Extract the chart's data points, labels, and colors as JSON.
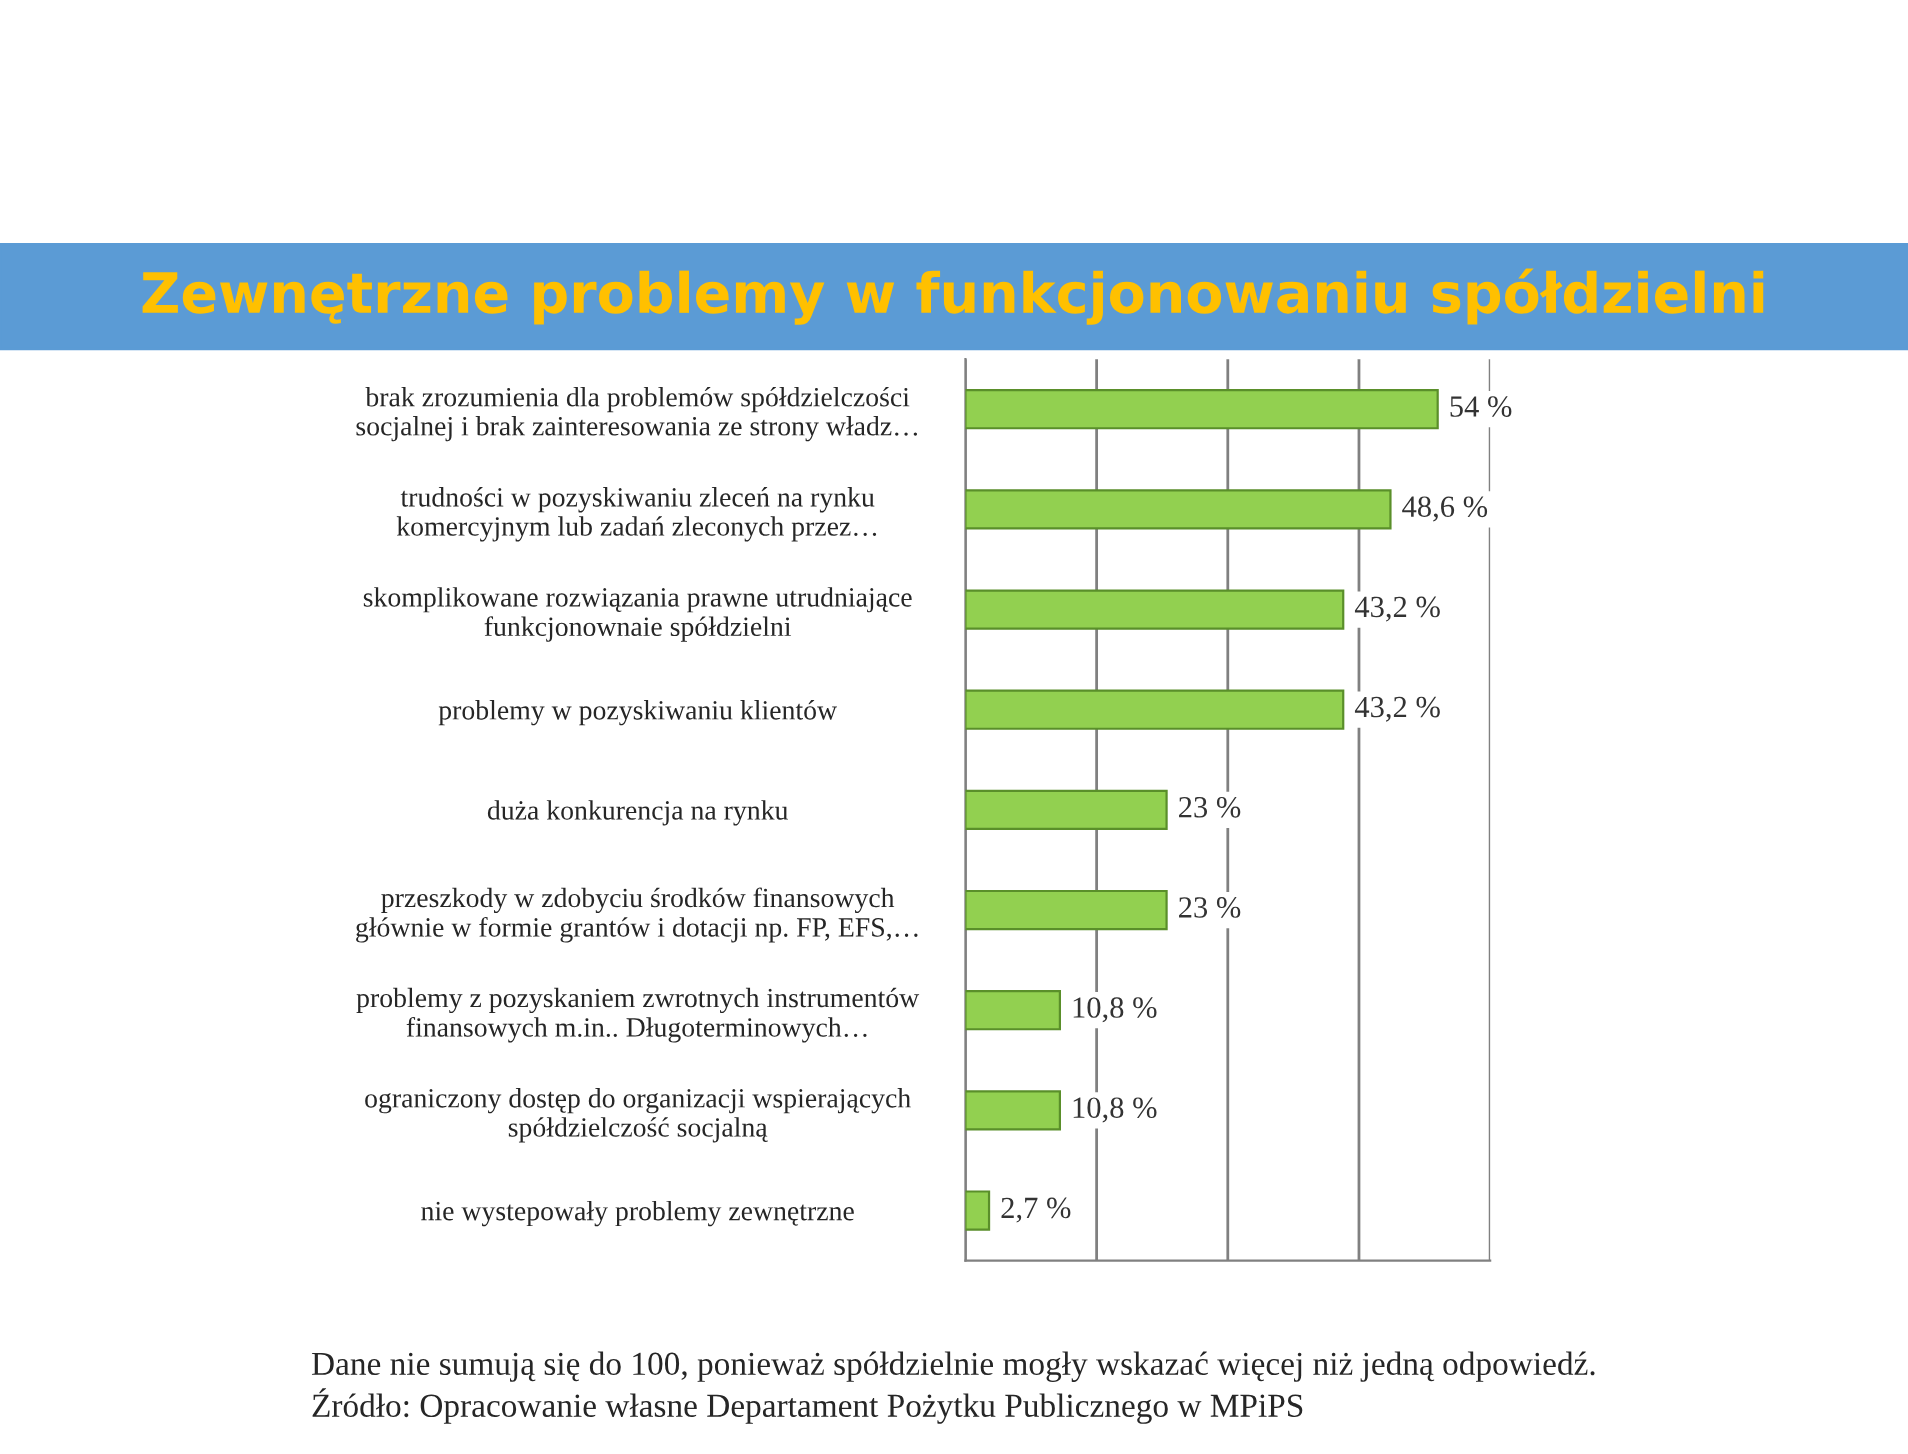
{
  "chart_data": {
    "type": "bar",
    "orientation": "horizontal",
    "title": "Zewnętrzne problemy w funkcjonowaniu spółdzielni",
    "categories": [
      "brak zrozumienia dla problemów spółdzielczości\nsocjalnej i brak zainteresowania ze strony władz…",
      "trudności w pozyskiwaniu zleceń na rynku\nkomercyjnym lub zadań zleconych przez…",
      "skomplikowane rozwiązania prawne utrudniające\nfunkcjonownaie spółdzielni",
      "problemy w pozyskiwaniu klientów",
      "duża konkurencja na rynku",
      "przeszkody w zdobyciu środków finansowych\ngłównie w formie grantów i dotacji np. FP, EFS,…",
      "problemy z pozyskaniem zwrotnych instrumentów\nfinansowych m.in.. Długoterminowych…",
      "ograniczony dostęp do organizacji wspierających\nspółdzielczość socjalną",
      "nie wystepowały problemy zewnętrzne"
    ],
    "values": [
      54,
      48.6,
      43.2,
      43.2,
      23,
      23,
      10.8,
      10.8,
      2.7
    ],
    "value_labels": [
      "54 %",
      "48,6 %",
      "43,2 %",
      "43,2 %",
      "23 %",
      "23 %",
      "10,8 %",
      "10,8 %",
      "2,7 %"
    ],
    "color": "#92d050",
    "xlim": [
      0,
      60
    ],
    "xticks": [
      {
        "value": 0,
        "label": null
      },
      {
        "value": 15,
        "label": null
      },
      {
        "value": 30,
        "label": null
      },
      {
        "value": 45,
        "label": null
      },
      {
        "value": 60,
        "label": null
      }
    ],
    "grid": "x",
    "tick_labels": "y",
    "annotations": [
      "Dane nie sumują się do 100, ponieważ spółdzielnie mogły wskazać więcej niż jedną odpowiedź.",
      "Źródło: Opracowanie własne Departament Pożytku Publicznego w MPiPS"
    ]
  }
}
